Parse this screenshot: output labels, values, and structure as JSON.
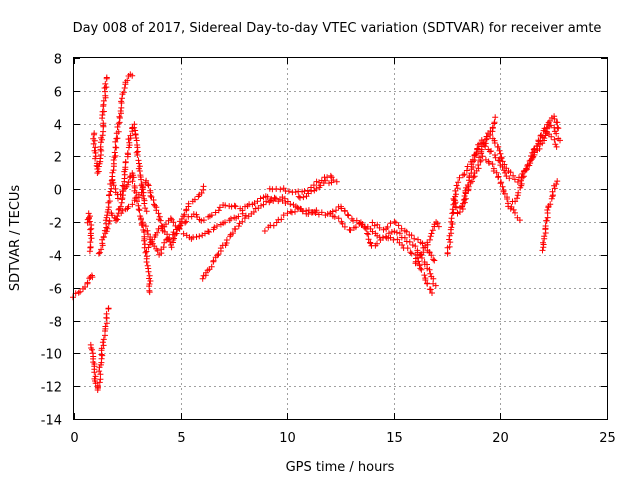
{
  "chart_data": {
    "type": "scatter",
    "title": "Day 008 of 2017, Sidereal Day-to-day VTEC variation (SDTVAR) for receiver amte",
    "xlabel": "GPS time / hours",
    "ylabel": "SDTVAR / TECUs",
    "xlim": [
      0,
      25
    ],
    "ylim": [
      -14,
      8
    ],
    "xticks": [
      0,
      5,
      10,
      15,
      20,
      25
    ],
    "yticks": [
      -14,
      -12,
      -10,
      -8,
      -6,
      -4,
      -2,
      0,
      2,
      4,
      6,
      8
    ],
    "grid": true,
    "marker": "+",
    "series": [
      {
        "name": "SDTVAR",
        "color": "#ff0000",
        "tracks": [
          [
            [
              0.0,
              -6.5
            ],
            [
              0.3,
              -6.2
            ],
            [
              0.6,
              -5.8
            ],
            [
              0.8,
              -5.2
            ],
            [
              1.0,
              -5.5
            ]
          ],
          [
            [
              0.6,
              -2.0
            ],
            [
              0.7,
              -1.5
            ],
            [
              0.8,
              -2.5
            ],
            [
              0.75,
              -4.0
            ]
          ],
          [
            [
              0.8,
              -9.5
            ],
            [
              0.9,
              -10.5
            ],
            [
              1.0,
              -11.5
            ],
            [
              1.1,
              -12.3
            ],
            [
              1.2,
              -11.5
            ],
            [
              1.3,
              -10.0
            ],
            [
              1.5,
              -8.5
            ],
            [
              1.6,
              -7.0
            ]
          ],
          [
            [
              0.9,
              3.5
            ],
            [
              1.0,
              2.0
            ],
            [
              1.1,
              1.0
            ],
            [
              1.2,
              1.5
            ],
            [
              1.3,
              3.0
            ],
            [
              1.4,
              5.0
            ],
            [
              1.5,
              6.5
            ],
            [
              1.6,
              7.0
            ]
          ],
          [
            [
              1.2,
              -4.0
            ],
            [
              1.4,
              -3.0
            ],
            [
              1.6,
              -1.0
            ],
            [
              1.8,
              1.0
            ],
            [
              2.0,
              3.0
            ],
            [
              2.2,
              5.0
            ],
            [
              2.4,
              6.5
            ],
            [
              2.6,
              7.0
            ],
            [
              2.8,
              6.8
            ]
          ],
          [
            [
              1.5,
              -2.5
            ],
            [
              1.8,
              -1.5
            ],
            [
              2.0,
              -2.0
            ],
            [
              2.2,
              -1.0
            ],
            [
              2.4,
              1.0
            ],
            [
              2.6,
              3.0
            ],
            [
              2.8,
              4.0
            ],
            [
              3.0,
              2.0
            ],
            [
              3.2,
              0.0
            ],
            [
              3.4,
              -1.5
            ]
          ],
          [
            [
              1.8,
              0.5
            ],
            [
              2.1,
              -0.5
            ],
            [
              2.4,
              0.0
            ],
            [
              2.7,
              1.0
            ],
            [
              3.0,
              -1.0
            ],
            [
              3.3,
              -3.0
            ],
            [
              3.5,
              -5.0
            ],
            [
              3.6,
              -6.5
            ]
          ],
          [
            [
              2.2,
              -1.5
            ],
            [
              2.6,
              -1.0
            ],
            [
              3.0,
              -0.5
            ],
            [
              3.4,
              0.5
            ],
            [
              3.8,
              -1.0
            ],
            [
              4.2,
              -2.5
            ],
            [
              4.6,
              -3.5
            ],
            [
              5.0,
              -2.0
            ],
            [
              5.4,
              -0.8
            ],
            [
              5.8,
              -0.5
            ],
            [
              6.2,
              0.3
            ]
          ],
          [
            [
              3.2,
              -2.0
            ],
            [
              3.6,
              -3.0
            ],
            [
              4.0,
              -4.0
            ],
            [
              4.4,
              -3.0
            ],
            [
              4.8,
              -2.5
            ],
            [
              5.2,
              -2.0
            ],
            [
              5.6,
              -1.5
            ],
            [
              6.0,
              -2.0
            ],
            [
              6.5,
              -1.5
            ],
            [
              7.0,
              -1.0
            ],
            [
              7.5,
              -1.0
            ],
            [
              8.0,
              -1.3
            ]
          ],
          [
            [
              3.5,
              -3.5
            ],
            [
              4.0,
              -2.5
            ],
            [
              4.5,
              -1.8
            ],
            [
              5.0,
              -2.5
            ],
            [
              5.5,
              -3.0
            ],
            [
              6.0,
              -2.8
            ],
            [
              6.5,
              -2.5
            ],
            [
              7.0,
              -2.0
            ],
            [
              7.5,
              -1.8
            ],
            [
              8.0,
              -1.5
            ]
          ],
          [
            [
              6.0,
              -5.5
            ],
            [
              6.5,
              -4.5
            ],
            [
              7.0,
              -3.5
            ],
            [
              7.5,
              -2.5
            ],
            [
              8.0,
              -1.8
            ],
            [
              8.5,
              -1.2
            ],
            [
              9.0,
              -0.8
            ],
            [
              9.5,
              -0.6
            ],
            [
              10.0,
              -0.5
            ]
          ],
          [
            [
              9.0,
              -2.5
            ],
            [
              9.5,
              -2.0
            ],
            [
              10.0,
              -1.5
            ],
            [
              10.5,
              -1.2
            ],
            [
              11.0,
              -1.3
            ],
            [
              11.5,
              -1.5
            ],
            [
              12.0,
              -1.5
            ],
            [
              12.5,
              -1.8
            ]
          ],
          [
            [
              8.0,
              -1.0
            ],
            [
              8.5,
              -0.8
            ],
            [
              9.0,
              -0.5
            ],
            [
              9.5,
              -0.6
            ],
            [
              10.0,
              -0.8
            ],
            [
              10.5,
              -1.2
            ],
            [
              11.0,
              -1.5
            ],
            [
              11.5,
              -1.2
            ]
          ],
          [
            [
              9.2,
              0.0
            ],
            [
              9.8,
              0.0
            ],
            [
              10.4,
              -0.2
            ],
            [
              11.0,
              0.0
            ],
            [
              11.5,
              0.5
            ],
            [
              12.0,
              0.8
            ],
            [
              12.4,
              0.3
            ]
          ],
          [
            [
              10.5,
              -0.5
            ],
            [
              11.0,
              -0.3
            ],
            [
              11.5,
              0.2
            ],
            [
              11.8,
              0.5
            ],
            [
              12.2,
              0.4
            ]
          ],
          [
            [
              12.0,
              -1.5
            ],
            [
              12.5,
              -1.0
            ],
            [
              13.0,
              -1.8
            ],
            [
              13.5,
              -2.2
            ],
            [
              14.0,
              -2.5
            ],
            [
              14.5,
              -3.0
            ],
            [
              15.0,
              -2.5
            ],
            [
              15.5,
              -3.0
            ],
            [
              16.0,
              -3.5
            ],
            [
              16.5,
              -4.5
            ],
            [
              17.0,
              -6.0
            ]
          ],
          [
            [
              12.5,
              -2.0
            ],
            [
              13.0,
              -2.5
            ],
            [
              13.5,
              -2.0
            ],
            [
              14.0,
              -3.5
            ],
            [
              14.5,
              -3.0
            ],
            [
              15.0,
              -3.0
            ],
            [
              15.5,
              -3.5
            ],
            [
              16.0,
              -4.0
            ],
            [
              16.5,
              -5.5
            ],
            [
              16.8,
              -6.5
            ]
          ],
          [
            [
              14.0,
              -2.0
            ],
            [
              14.5,
              -2.5
            ],
            [
              15.0,
              -2.0
            ],
            [
              15.5,
              -2.5
            ],
            [
              16.0,
              -3.0
            ],
            [
              16.5,
              -3.5
            ],
            [
              17.0,
              -4.5
            ]
          ],
          [
            [
              16.0,
              -4.5
            ],
            [
              16.5,
              -3.5
            ],
            [
              16.8,
              -2.5
            ],
            [
              17.0,
              -2.0
            ],
            [
              17.2,
              -2.5
            ]
          ],
          [
            [
              17.5,
              -4.0
            ],
            [
              17.7,
              -2.5
            ],
            [
              17.8,
              -1.0
            ],
            [
              18.0,
              0.5
            ],
            [
              18.3,
              1.0
            ],
            [
              18.6,
              1.5
            ],
            [
              19.0,
              2.5
            ],
            [
              19.3,
              3.0
            ],
            [
              19.6,
              3.5
            ],
            [
              19.8,
              4.5
            ]
          ],
          [
            [
              17.8,
              -0.5
            ],
            [
              18.0,
              -1.5
            ],
            [
              18.2,
              -1.0
            ],
            [
              18.5,
              0.5
            ],
            [
              18.8,
              2.0
            ],
            [
              19.1,
              3.0
            ],
            [
              19.4,
              2.5
            ],
            [
              19.8,
              2.0
            ],
            [
              20.2,
              1.0
            ],
            [
              20.5,
              0.5
            ]
          ],
          [
            [
              18.2,
              -1.2
            ],
            [
              18.5,
              0.0
            ],
            [
              18.8,
              1.0
            ],
            [
              19.2,
              2.0
            ],
            [
              19.6,
              1.5
            ],
            [
              20.0,
              0.5
            ],
            [
              20.4,
              -1.0
            ],
            [
              20.7,
              -1.5
            ],
            [
              21.0,
              -2.0
            ]
          ],
          [
            [
              19.0,
              2.0
            ],
            [
              19.5,
              3.5
            ],
            [
              19.9,
              2.5
            ],
            [
              20.2,
              1.5
            ],
            [
              20.5,
              1.0
            ],
            [
              20.8,
              0.5
            ],
            [
              21.2,
              1.2
            ],
            [
              21.5,
              2.0
            ],
            [
              21.8,
              3.0
            ],
            [
              22.2,
              4.0
            ],
            [
              22.5,
              4.5
            ],
            [
              22.8,
              3.5
            ]
          ],
          [
            [
              20.5,
              -1.0
            ],
            [
              20.8,
              -0.5
            ],
            [
              21.0,
              0.5
            ],
            [
              21.3,
              1.5
            ],
            [
              21.6,
              2.5
            ],
            [
              21.9,
              3.0
            ],
            [
              22.2,
              3.5
            ],
            [
              22.5,
              3.0
            ],
            [
              22.7,
              2.5
            ]
          ],
          [
            [
              21.5,
              2.0
            ],
            [
              21.8,
              2.5
            ],
            [
              22.0,
              3.0
            ],
            [
              22.3,
              4.0
            ],
            [
              22.6,
              3.5
            ],
            [
              22.8,
              2.8
            ]
          ],
          [
            [
              22.0,
              -3.8
            ],
            [
              22.1,
              -2.5
            ],
            [
              22.2,
              -1.5
            ],
            [
              22.4,
              -0.5
            ],
            [
              22.6,
              0.3
            ],
            [
              22.8,
              0.6
            ]
          ]
        ]
      }
    ]
  }
}
